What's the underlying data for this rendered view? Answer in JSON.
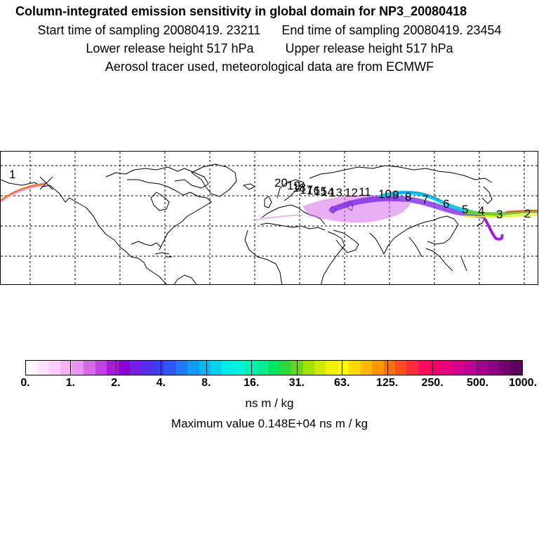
{
  "header": {
    "title": "Column-integrated emission sensitivity in global domain for NP3_20080418",
    "start_label": "Start time of sampling 20080419. 23211",
    "end_label": "End time of sampling 20080419. 23454",
    "lower_label": "Lower release height  517 hPa",
    "upper_label": "Upper release height  517 hPa",
    "info": "Aerosol tracer used, meteorological data are from ECMWF"
  },
  "map": {
    "trajectory_labels": [
      "20",
      "19",
      "18",
      "17",
      "16",
      "15",
      "14",
      "13",
      "12",
      "11",
      "10",
      "9",
      "8",
      "7",
      "6",
      "5",
      "4",
      "3",
      "2",
      "1"
    ]
  },
  "colorbar": {
    "tick_labels": [
      "0.",
      "1.",
      "2.",
      "4.",
      "8.",
      "16.",
      "31.",
      "63.",
      "125.",
      "250.",
      "500.",
      "1000."
    ],
    "colors": [
      "#fff6ff",
      "#ffe3ff",
      "#ffcdfb",
      "#f9b3f5",
      "#e895ee",
      "#d46ce6",
      "#c23fe0",
      "#a81ad8",
      "#8c00d0",
      "#7a1ee6",
      "#5a2dee",
      "#3c3ef4",
      "#2e57f6",
      "#1f7af6",
      "#0f9cf6",
      "#08b8f4",
      "#00d2f0",
      "#00ecec",
      "#00f4dc",
      "#00f0b8",
      "#00ec90",
      "#00e464",
      "#2ed83a",
      "#6cd41e",
      "#a4e000",
      "#cfec00",
      "#f0f000",
      "#fffa00",
      "#ffd800",
      "#ffb800",
      "#ff9600",
      "#ff7200",
      "#ff4e1e",
      "#ff2c3c",
      "#ff0c5a",
      "#f2006c",
      "#e4007e",
      "#d2008a",
      "#bc0090",
      "#a60090",
      "#8c0084",
      "#720070",
      "#5c005c"
    ],
    "units": "ns m / kg",
    "max_value_text": "Maximum value  0.148E+04 ns m / kg"
  }
}
